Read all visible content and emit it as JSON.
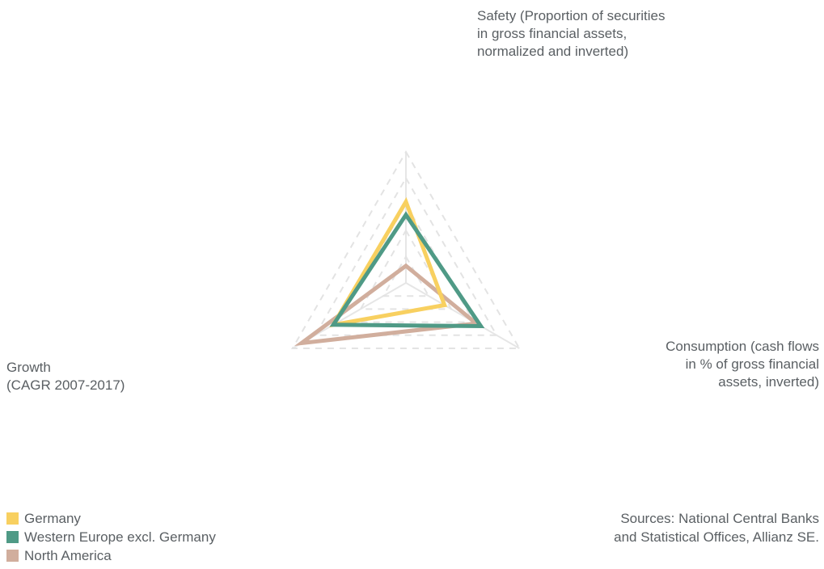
{
  "chart_data": {
    "type": "radar",
    "axes": [
      {
        "key": "safety",
        "label_lines": [
          "Safety (Proportion of securities",
          "in gross financial assets,",
          "normalized and inverted)"
        ]
      },
      {
        "key": "consumption",
        "label_lines": [
          "Consumption (cash flows",
          "in % of gross financial",
          "assets, inverted)"
        ]
      },
      {
        "key": "growth",
        "label_lines": [
          "Growth",
          "(CAGR 2007-2017)"
        ]
      }
    ],
    "scale": {
      "min": 0,
      "max": 5,
      "grid_rings": 5,
      "grid_style": "dashed"
    },
    "series": [
      {
        "name": "Germany",
        "color": "#f8d060",
        "values": {
          "safety": 3.1,
          "consumption": 1.7,
          "growth": 3.2
        }
      },
      {
        "name": "Western Europe excl. Germany",
        "color": "#4f9a86",
        "values": {
          "safety": 2.6,
          "consumption": 3.3,
          "growth": 3.2
        }
      },
      {
        "name": "North America",
        "color": "#d1ae9d",
        "values": {
          "safety": 0.65,
          "consumption": 3.1,
          "growth": 4.6
        }
      }
    ]
  },
  "sources_lines": [
    "Sources: National Central Banks",
    "and Statistical Offices, Allianz SE."
  ]
}
